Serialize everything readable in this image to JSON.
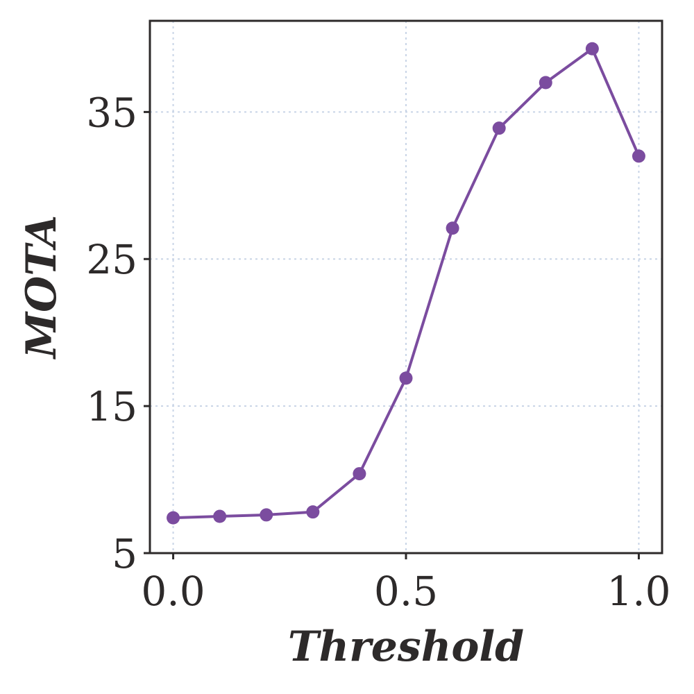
{
  "chart_data": {
    "type": "line",
    "title": "",
    "xlabel": "Threshold",
    "ylabel": "MOTA",
    "x": [
      0.0,
      0.1,
      0.2,
      0.3,
      0.4,
      0.5,
      0.6,
      0.7,
      0.8,
      0.9,
      1.0
    ],
    "series": [
      {
        "name": "MOTA",
        "values": [
          7.4,
          7.5,
          7.6,
          7.8,
          10.4,
          16.9,
          27.1,
          33.9,
          37.0,
          39.3,
          32.0
        ]
      }
    ],
    "xlim": [
      -0.05,
      1.05
    ],
    "ylim": [
      5,
      41.2
    ],
    "xticks": [
      0.0,
      0.5,
      1.0
    ],
    "xtick_labels": [
      "0.0",
      "0.5",
      "1.0"
    ],
    "yticks": [
      5,
      15,
      25,
      35
    ],
    "ytick_labels": [
      "5",
      "15",
      "25",
      "35"
    ],
    "grid": true,
    "colors": {
      "line": "#7b4c9f",
      "marker": "#7b4c9f",
      "grid": "#c8d4e6",
      "axis": "#2d2a2a"
    }
  }
}
